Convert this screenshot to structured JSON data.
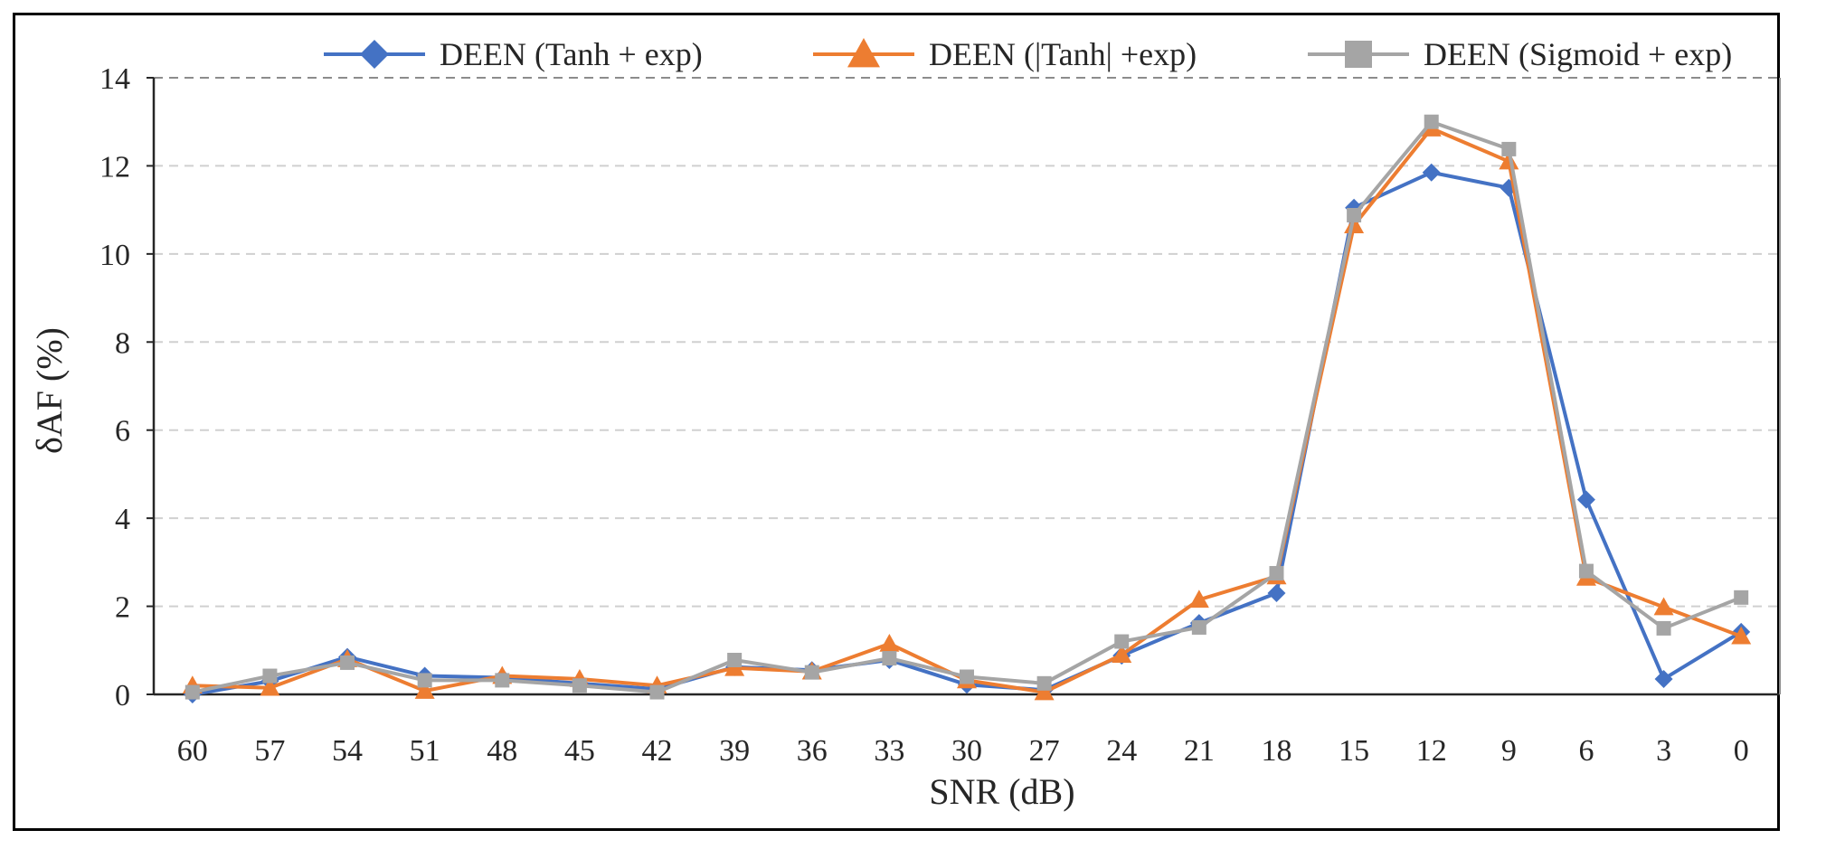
{
  "chart_data": {
    "type": "line",
    "xlabel": "SNR (dB)",
    "ylabel": "δAF (%)",
    "ylim": [
      0,
      14
    ],
    "yticks": [
      0,
      2,
      4,
      6,
      8,
      10,
      12,
      14
    ],
    "categories": [
      "60",
      "57",
      "54",
      "51",
      "48",
      "45",
      "42",
      "39",
      "36",
      "33",
      "30",
      "27",
      "24",
      "21",
      "18",
      "15",
      "12",
      "9",
      "6",
      "3",
      "0"
    ],
    "grid": "horizontal-dashed",
    "legend_position": "top",
    "series": [
      {
        "name": "DEEN (Tanh + exp)",
        "color": "#4472C4",
        "marker": "diamond",
        "values": [
          0.0,
          0.3,
          0.85,
          0.42,
          0.38,
          0.25,
          0.12,
          0.62,
          0.55,
          0.78,
          0.22,
          0.1,
          0.88,
          1.62,
          2.3,
          11.05,
          11.85,
          11.5,
          4.42,
          0.35,
          1.42
        ]
      },
      {
        "name": "DEEN (|Tanh| +exp)",
        "color": "#ED7D31",
        "marker": "triangle",
        "values": [
          0.2,
          0.15,
          0.8,
          0.08,
          0.42,
          0.35,
          0.2,
          0.6,
          0.52,
          1.15,
          0.32,
          0.05,
          0.9,
          2.15,
          2.68,
          10.65,
          12.85,
          12.1,
          2.65,
          1.98,
          1.32
        ]
      },
      {
        "name": "DEEN (Sigmoid + exp)",
        "color": "#A5A5A5",
        "marker": "square",
        "values": [
          0.05,
          0.42,
          0.72,
          0.32,
          0.32,
          0.2,
          0.05,
          0.78,
          0.5,
          0.82,
          0.4,
          0.25,
          1.2,
          1.52,
          2.75,
          10.88,
          13.0,
          12.38,
          2.8,
          1.5,
          2.2
        ]
      }
    ]
  }
}
